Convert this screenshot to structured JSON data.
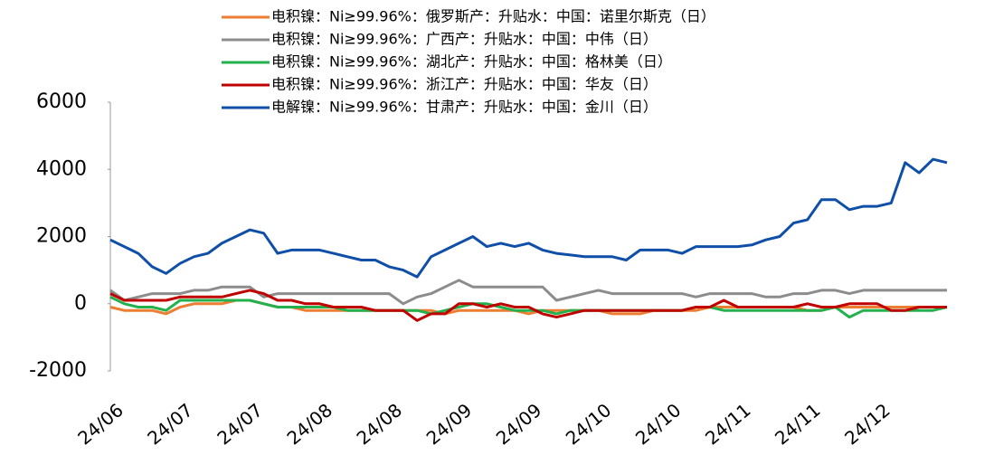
{
  "chart_data": {
    "type": "line",
    "categories": [
      "24/06",
      null,
      null,
      null,
      null,
      "24/07",
      null,
      null,
      null,
      null,
      "24/07",
      null,
      null,
      null,
      null,
      "24/08",
      null,
      null,
      null,
      null,
      "24/08",
      null,
      null,
      null,
      null,
      "24/09",
      null,
      null,
      null,
      null,
      "24/09",
      null,
      null,
      null,
      null,
      "24/10",
      null,
      null,
      null,
      null,
      "24/10",
      null,
      null,
      null,
      null,
      "24/11",
      null,
      null,
      null,
      null,
      "24/11",
      null,
      null,
      null,
      null,
      "24/12",
      null,
      null,
      null,
      null,
      null
    ],
    "series": [
      {
        "name": "电积镍：Ni≥99.96%：俄罗斯产：升贴水：中国：诺里尔斯克（日）",
        "color": "#ed7d31",
        "values": [
          -100,
          -200,
          -200,
          -200,
          -300,
          -100,
          0,
          0,
          0,
          100,
          100,
          0,
          -100,
          -100,
          -200,
          -200,
          -200,
          -200,
          -200,
          -200,
          -200,
          -200,
          -200,
          -200,
          -300,
          -200,
          -200,
          -200,
          -200,
          -200,
          -300,
          -200,
          -200,
          -200,
          -200,
          -200,
          -300,
          -300,
          -300,
          -200,
          -200,
          -200,
          -200,
          -100,
          -100,
          -100,
          -100,
          -100,
          -100,
          -100,
          -200,
          -200,
          -100,
          -100,
          -100,
          -100,
          -100,
          -100,
          -100,
          -100,
          -100
        ]
      },
      {
        "name": "电积镍：Ni≥99.96%：广西产：升贴水：中国：中伟（日）",
        "color": "#8c8c8c",
        "values": [
          400,
          100,
          200,
          300,
          300,
          300,
          400,
          400,
          500,
          500,
          500,
          200,
          300,
          300,
          300,
          300,
          300,
          300,
          300,
          300,
          300,
          0,
          200,
          300,
          500,
          700,
          500,
          500,
          500,
          500,
          500,
          500,
          100,
          200,
          300,
          400,
          300,
          300,
          300,
          300,
          300,
          300,
          200,
          300,
          300,
          300,
          300,
          200,
          200,
          300,
          300,
          400,
          400,
          300,
          400,
          400,
          400,
          400,
          400,
          400,
          400
        ]
      },
      {
        "name": "电积镍：Ni≥99.96%：湖北产：升贴水：中国：格林美（日）",
        "color": "#22b14c",
        "values": [
          200,
          0,
          -100,
          -100,
          -200,
          100,
          100,
          100,
          100,
          100,
          100,
          0,
          -100,
          -100,
          -100,
          -100,
          -100,
          -200,
          -200,
          -200,
          -200,
          -200,
          -200,
          -300,
          -200,
          -100,
          0,
          0,
          -100,
          -200,
          -200,
          -200,
          -300,
          -200,
          -200,
          -200,
          -200,
          -200,
          -200,
          -200,
          -200,
          -200,
          -100,
          -100,
          -200,
          -200,
          -200,
          -200,
          -200,
          -200,
          -200,
          -200,
          -100,
          -400,
          -200,
          -200,
          -200,
          -200,
          -200,
          -200,
          -100
        ]
      },
      {
        "name": "电积镍：Ni≥99.96%：浙江产：升贴水：中国：华友（日）",
        "color": "#c00000",
        "values": [
          300,
          100,
          100,
          100,
          100,
          200,
          200,
          200,
          200,
          300,
          400,
          300,
          100,
          100,
          0,
          0,
          -100,
          -100,
          -100,
          -200,
          -200,
          -200,
          -500,
          -300,
          -300,
          0,
          0,
          -100,
          0,
          -100,
          -100,
          -300,
          -400,
          -300,
          -200,
          -200,
          -200,
          -200,
          -200,
          -200,
          -200,
          -200,
          -100,
          -100,
          100,
          -100,
          -100,
          -100,
          -100,
          -100,
          0,
          -100,
          -100,
          0,
          0,
          0,
          -200,
          -200,
          -100,
          -100,
          -100
        ]
      },
      {
        "name": "电解镍：Ni≥99.96%：甘肃产：升贴水：中国：金川（日）",
        "color": "#0f4fa8",
        "values": [
          1900,
          1700,
          1500,
          1100,
          900,
          1200,
          1400,
          1500,
          1800,
          2000,
          2200,
          2100,
          1500,
          1600,
          1600,
          1600,
          1500,
          1400,
          1300,
          1300,
          1100,
          1000,
          800,
          1400,
          1600,
          1800,
          2000,
          1700,
          1800,
          1700,
          1800,
          1600,
          1500,
          1450,
          1400,
          1400,
          1400,
          1300,
          1600,
          1600,
          1600,
          1500,
          1700,
          1700,
          1700,
          1700,
          1750,
          1900,
          2000,
          2400,
          2500,
          3100,
          3100,
          2800,
          2900,
          2900,
          3000,
          4200,
          3900,
          4300,
          4200
        ]
      }
    ],
    "ylim": [
      -2000,
      6000
    ],
    "yticks": [
      -2000,
      0,
      2000,
      4000,
      6000
    ],
    "grid": false
  }
}
